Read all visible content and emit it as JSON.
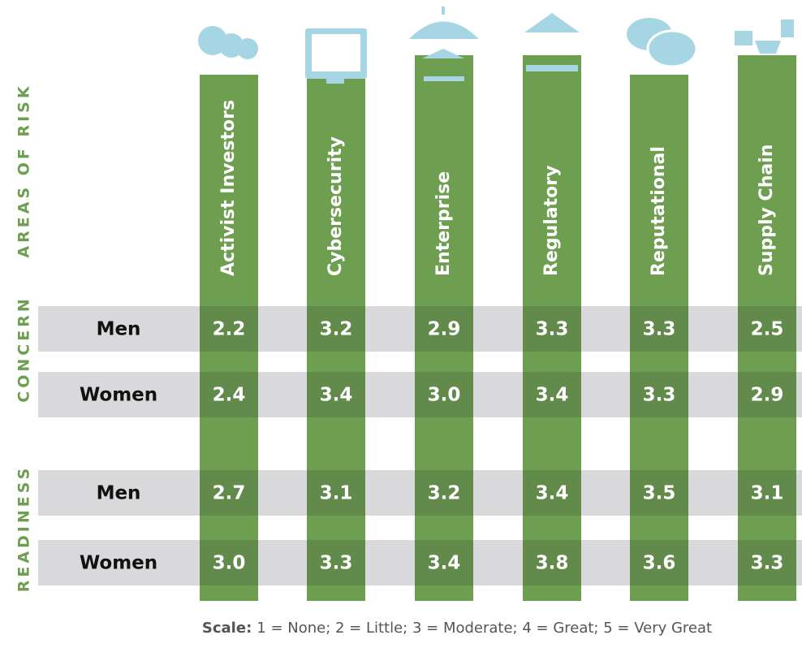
{
  "sections": {
    "areas": "AREAS OF RISK",
    "concern": "CONCERN",
    "readiness": "READINESS"
  },
  "columns": [
    "Activist Investors",
    "Cybersecurity",
    "Enterprise",
    "Regulatory",
    "Reputational",
    "Supply Chain"
  ],
  "rows": [
    {
      "label": "Men",
      "values": [
        "2.2",
        "3.2",
        "2.9",
        "3.3",
        "3.3",
        "2.5"
      ]
    },
    {
      "label": "Women",
      "values": [
        "2.4",
        "3.4",
        "3.0",
        "3.4",
        "3.3",
        "2.9"
      ]
    },
    {
      "label": "Men",
      "values": [
        "2.7",
        "3.1",
        "3.2",
        "3.4",
        "3.5",
        "3.1"
      ]
    },
    {
      "label": "Women",
      "values": [
        "3.0",
        "3.3",
        "3.4",
        "3.8",
        "3.6",
        "3.3"
      ]
    }
  ],
  "footer": {
    "scale_label": "Scale:",
    "scale_text": "1 = None; 2 = Little; 3 = Moderate; 4 = Great; 5 = Very Great"
  }
}
